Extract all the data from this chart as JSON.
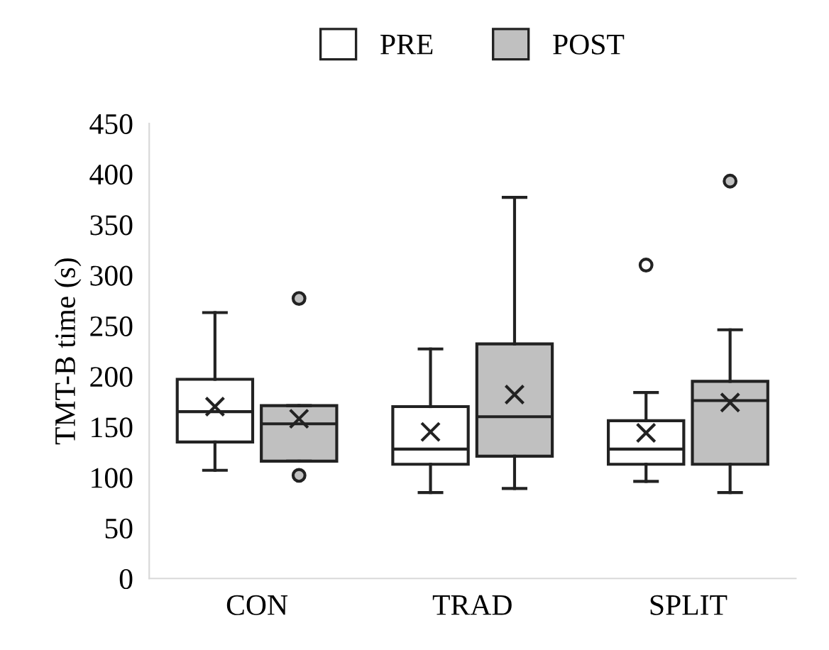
{
  "chart_data": {
    "type": "box",
    "ylabel": "TMT-B time (s)",
    "categories": [
      "CON",
      "TRAD",
      "SPLIT"
    ],
    "ylim": [
      0,
      450
    ],
    "yticks": [
      0,
      50,
      100,
      150,
      200,
      250,
      300,
      350,
      400,
      450
    ],
    "grid": false,
    "legend": "top",
    "series": [
      {
        "name": "PRE",
        "color": "#ffffff",
        "boxes": [
          {
            "low": 107,
            "q1": 135,
            "median": 165,
            "q3": 197,
            "high": 263,
            "mean": 170
          },
          {
            "low": 85,
            "q1": 113,
            "median": 128,
            "q3": 170,
            "high": 227,
            "mean": 145
          },
          {
            "low": 96,
            "q1": 113,
            "median": 128,
            "q3": 156,
            "high": 184,
            "mean": 144,
            "outliers": [
              310
            ]
          }
        ]
      },
      {
        "name": "POST",
        "color": "#c0c0c0",
        "boxes": [
          {
            "low": 116,
            "q1": 116,
            "median": 153,
            "q3": 171,
            "high": 171,
            "mean": 158,
            "outliers": [
              102,
              277
            ]
          },
          {
            "low": 89,
            "q1": 121,
            "median": 160,
            "q3": 232,
            "high": 377,
            "mean": 182
          },
          {
            "low": 85,
            "q1": 113,
            "median": 176,
            "q3": 195,
            "high": 246,
            "mean": 174,
            "outliers": [
              393
            ]
          }
        ]
      }
    ]
  }
}
